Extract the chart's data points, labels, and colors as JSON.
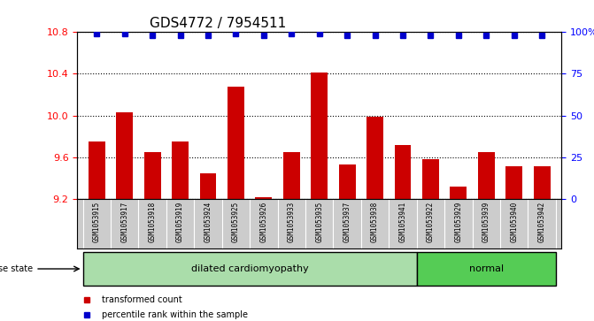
{
  "title": "GDS4772 / 7954511",
  "samples": [
    "GSM1053915",
    "GSM1053917",
    "GSM1053918",
    "GSM1053919",
    "GSM1053924",
    "GSM1053925",
    "GSM1053926",
    "GSM1053933",
    "GSM1053935",
    "GSM1053937",
    "GSM1053938",
    "GSM1053941",
    "GSM1053922",
    "GSM1053929",
    "GSM1053939",
    "GSM1053940",
    "GSM1053942"
  ],
  "bar_values": [
    9.75,
    10.03,
    9.65,
    9.75,
    9.45,
    10.28,
    9.22,
    9.65,
    10.41,
    9.53,
    9.99,
    9.72,
    9.58,
    9.32,
    9.65,
    9.51,
    9.51
  ],
  "percentile_values": [
    99,
    99,
    98,
    98,
    98,
    99,
    98,
    99,
    99,
    98,
    98,
    98,
    98,
    98,
    98,
    98,
    98
  ],
  "ylim_left": [
    9.2,
    10.8
  ],
  "ylim_right": [
    0,
    100
  ],
  "yticks_left": [
    9.2,
    9.6,
    10.0,
    10.4,
    10.8
  ],
  "yticks_right": [
    0,
    25,
    50,
    75,
    100
  ],
  "bar_color": "#cc0000",
  "dot_color": "#0000cc",
  "bg_color": "#cccccc",
  "dilated_color": "#aaddaa",
  "normal_color": "#55cc55",
  "n_dilated": 12,
  "disease_label": "dilated cardiomyopathy",
  "normal_label": "normal",
  "legend_bar_label": "transformed count",
  "legend_dot_label": "percentile rank within the sample",
  "title_fontsize": 11,
  "axis_fontsize": 8,
  "label_fontsize": 5.5
}
